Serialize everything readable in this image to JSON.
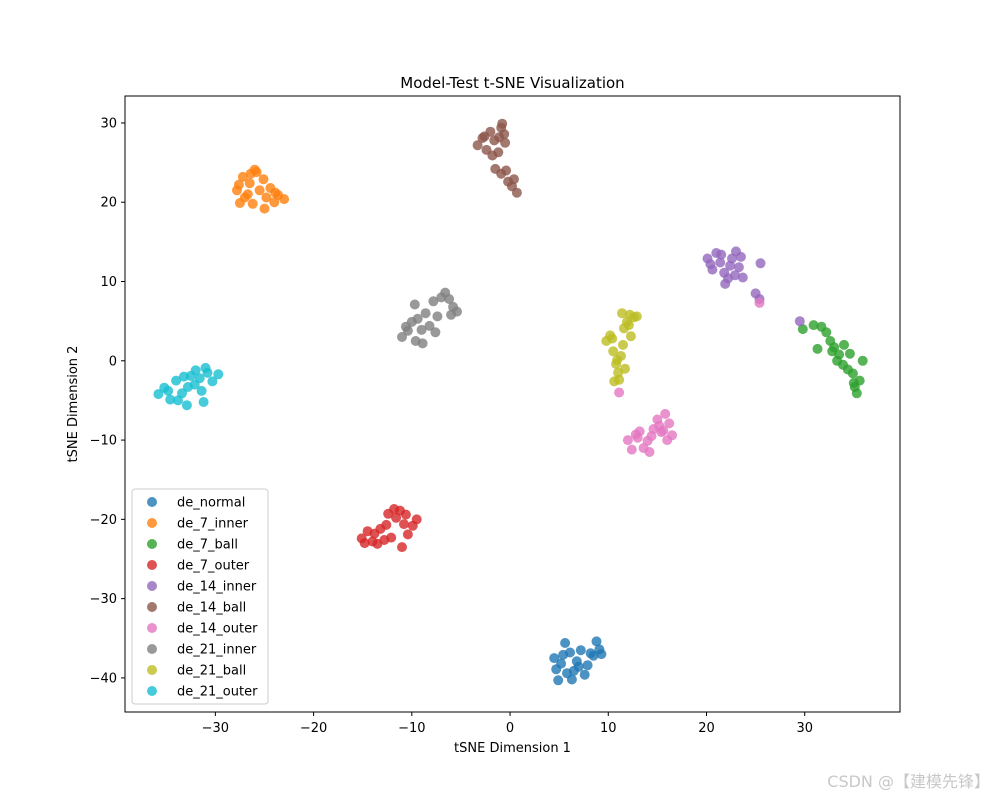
{
  "chart_data": {
    "type": "scatter",
    "title": "Model-Test t-SNE Visualization",
    "xlabel": "tSNE Dimension 1",
    "ylabel": "tSNE Dimension 2",
    "xlim": [
      -39.2,
      39.7
    ],
    "ylim": [
      -44.3,
      33.4
    ],
    "xticks": [
      -30,
      -20,
      -10,
      0,
      10,
      20,
      30
    ],
    "yticks": [
      -40,
      -30,
      -20,
      -10,
      0,
      10,
      20,
      30
    ],
    "grid": false,
    "legend_position": "lower-left",
    "series": [
      {
        "name": "de_normal",
        "color": "#1f77b4",
        "points": [
          [
            4.5,
            -37.5
          ],
          [
            5.2,
            -38.2
          ],
          [
            5.8,
            -39.4
          ],
          [
            4.9,
            -40.3
          ],
          [
            6.1,
            -36.8
          ],
          [
            6.8,
            -37.9
          ],
          [
            7.2,
            -36.5
          ],
          [
            7.9,
            -38.4
          ],
          [
            8.5,
            -37.2
          ],
          [
            9.1,
            -36.4
          ],
          [
            6.5,
            -39.1
          ],
          [
            5.6,
            -35.6
          ],
          [
            7.6,
            -39.6
          ],
          [
            8.8,
            -35.4
          ],
          [
            4.7,
            -38.9
          ],
          [
            6.3,
            -40.2
          ],
          [
            5.4,
            -37.1
          ],
          [
            7.0,
            -38.6
          ],
          [
            8.2,
            -36.9
          ],
          [
            9.3,
            -37.0
          ]
        ]
      },
      {
        "name": "de_7_inner",
        "color": "#ff7f0e",
        "points": [
          [
            -27.8,
            21.5
          ],
          [
            -27.2,
            23.2
          ],
          [
            -26.5,
            22.4
          ],
          [
            -25.8,
            23.8
          ],
          [
            -26.0,
            24.1
          ],
          [
            -25.1,
            22.9
          ],
          [
            -24.4,
            21.8
          ],
          [
            -23.6,
            20.9
          ],
          [
            -23.0,
            20.4
          ],
          [
            -24.0,
            20.0
          ],
          [
            -25.0,
            19.2
          ],
          [
            -26.2,
            19.8
          ],
          [
            -27.0,
            20.6
          ],
          [
            -27.5,
            19.9
          ],
          [
            -26.7,
            21.0
          ],
          [
            -24.8,
            20.6
          ],
          [
            -25.5,
            21.5
          ],
          [
            -23.9,
            21.2
          ],
          [
            -26.4,
            23.6
          ],
          [
            -27.6,
            22.2
          ]
        ]
      },
      {
        "name": "de_7_ball",
        "color": "#2ca02c",
        "points": [
          [
            29.8,
            4.0
          ],
          [
            30.9,
            4.5
          ],
          [
            31.7,
            4.3
          ],
          [
            31.3,
            1.5
          ],
          [
            32.2,
            3.6
          ],
          [
            32.6,
            2.5
          ],
          [
            33.0,
            1.7
          ],
          [
            33.5,
            0.8
          ],
          [
            33.9,
            -0.5
          ],
          [
            34.4,
            -1.1
          ],
          [
            34.9,
            -1.6
          ],
          [
            35.0,
            -2.8
          ],
          [
            35.3,
            -4.1
          ],
          [
            35.6,
            -2.5
          ],
          [
            35.9,
            0.0
          ],
          [
            34.0,
            2.0
          ],
          [
            33.3,
            0.0
          ],
          [
            32.8,
            1.2
          ],
          [
            34.6,
            0.9
          ],
          [
            35.1,
            -3.3
          ]
        ]
      },
      {
        "name": "de_7_outer",
        "color": "#d62728",
        "points": [
          [
            -15.1,
            -22.4
          ],
          [
            -14.5,
            -21.5
          ],
          [
            -14.0,
            -22.8
          ],
          [
            -13.5,
            -23.1
          ],
          [
            -13.2,
            -21.2
          ],
          [
            -12.6,
            -20.7
          ],
          [
            -12.1,
            -22.3
          ],
          [
            -11.6,
            -19.8
          ],
          [
            -11.2,
            -18.9
          ],
          [
            -10.8,
            -20.6
          ],
          [
            -10.4,
            -21.9
          ],
          [
            -9.9,
            -20.8
          ],
          [
            -9.5,
            -20.0
          ],
          [
            -11.0,
            -23.5
          ],
          [
            -12.4,
            -19.3
          ],
          [
            -13.8,
            -21.8
          ],
          [
            -12.8,
            -22.6
          ],
          [
            -11.8,
            -18.7
          ],
          [
            -10.6,
            -19.4
          ],
          [
            -14.8,
            -23.0
          ]
        ]
      },
      {
        "name": "de_14_inner",
        "color": "#9467bd",
        "points": [
          [
            20.1,
            12.9
          ],
          [
            20.6,
            11.5
          ],
          [
            21.0,
            13.6
          ],
          [
            21.4,
            12.4
          ],
          [
            21.8,
            11.1
          ],
          [
            22.2,
            10.4
          ],
          [
            22.6,
            12.9
          ],
          [
            23.0,
            13.8
          ],
          [
            23.3,
            11.8
          ],
          [
            23.7,
            10.5
          ],
          [
            22.9,
            10.8
          ],
          [
            21.5,
            13.4
          ],
          [
            20.4,
            12.2
          ],
          [
            23.5,
            13.1
          ],
          [
            25.0,
            8.5
          ],
          [
            25.5,
            12.3
          ],
          [
            25.4,
            7.8
          ],
          [
            29.5,
            5.0
          ],
          [
            21.9,
            9.7
          ],
          [
            22.4,
            12.0
          ]
        ]
      },
      {
        "name": "de_14_ball",
        "color": "#8c564b",
        "points": [
          [
            -3.3,
            27.2
          ],
          [
            -2.8,
            28.1
          ],
          [
            -2.4,
            26.6
          ],
          [
            -2.0,
            28.9
          ],
          [
            -1.6,
            27.8
          ],
          [
            -1.2,
            26.3
          ],
          [
            -0.9,
            29.4
          ],
          [
            -0.6,
            28.6
          ],
          [
            -0.5,
            27.5
          ],
          [
            -0.8,
            29.9
          ],
          [
            -1.8,
            25.9
          ],
          [
            -1.5,
            24.2
          ],
          [
            -0.9,
            23.6
          ],
          [
            -0.2,
            22.6
          ],
          [
            0.2,
            22.0
          ],
          [
            0.4,
            22.9
          ],
          [
            0.7,
            21.2
          ],
          [
            -0.4,
            24.0
          ],
          [
            -2.6,
            28.3
          ],
          [
            -1.1,
            28.2
          ]
        ]
      },
      {
        "name": "de_14_outer",
        "color": "#e377c2",
        "points": [
          [
            12.0,
            -10.0
          ],
          [
            12.4,
            -11.2
          ],
          [
            12.8,
            -9.3
          ],
          [
            13.2,
            -8.9
          ],
          [
            13.6,
            -11.0
          ],
          [
            14.0,
            -10.1
          ],
          [
            14.2,
            -11.5
          ],
          [
            14.6,
            -8.6
          ],
          [
            15.0,
            -7.4
          ],
          [
            15.4,
            -9.0
          ],
          [
            15.8,
            -6.7
          ],
          [
            16.2,
            -7.9
          ],
          [
            16.5,
            -9.4
          ],
          [
            15.2,
            -8.2
          ],
          [
            16.0,
            -10.0
          ],
          [
            13.0,
            -9.7
          ],
          [
            14.4,
            -9.5
          ],
          [
            11.1,
            -4.0
          ],
          [
            25.4,
            7.3
          ],
          [
            15.6,
            -8.8
          ]
        ]
      },
      {
        "name": "de_21_inner",
        "color": "#7f7f7f",
        "points": [
          [
            -11.0,
            3.0
          ],
          [
            -10.4,
            3.8
          ],
          [
            -10.0,
            4.9
          ],
          [
            -9.6,
            2.5
          ],
          [
            -9.4,
            5.3
          ],
          [
            -9.0,
            3.9
          ],
          [
            -8.6,
            6.0
          ],
          [
            -8.2,
            4.4
          ],
          [
            -7.8,
            7.5
          ],
          [
            -7.4,
            5.6
          ],
          [
            -7.0,
            8.0
          ],
          [
            -6.6,
            8.6
          ],
          [
            -6.2,
            7.8
          ],
          [
            -5.8,
            6.8
          ],
          [
            -5.4,
            6.2
          ],
          [
            -9.7,
            7.1
          ],
          [
            -10.6,
            4.3
          ],
          [
            -8.9,
            2.2
          ],
          [
            -7.6,
            3.6
          ],
          [
            -6.0,
            5.8
          ]
        ]
      },
      {
        "name": "de_21_ball",
        "color": "#bcbd22",
        "points": [
          [
            9.8,
            2.5
          ],
          [
            10.2,
            3.2
          ],
          [
            10.5,
            1.2
          ],
          [
            10.8,
            -0.4
          ],
          [
            11.0,
            -1.5
          ],
          [
            10.6,
            -2.6
          ],
          [
            11.1,
            -2.4
          ],
          [
            11.3,
            0.6
          ],
          [
            11.5,
            2.0
          ],
          [
            11.6,
            4.1
          ],
          [
            11.9,
            4.9
          ],
          [
            12.2,
            5.8
          ],
          [
            12.6,
            5.5
          ],
          [
            12.9,
            5.6
          ],
          [
            12.3,
            3.1
          ],
          [
            11.4,
            6.0
          ],
          [
            10.9,
            0.1
          ],
          [
            11.7,
            -1.0
          ],
          [
            10.4,
            2.8
          ],
          [
            12.1,
            4.5
          ]
        ]
      },
      {
        "name": "de_21_outer",
        "color": "#17becf",
        "points": [
          [
            -35.8,
            -4.2
          ],
          [
            -35.2,
            -3.4
          ],
          [
            -34.6,
            -4.9
          ],
          [
            -34.0,
            -2.5
          ],
          [
            -33.4,
            -4.1
          ],
          [
            -32.9,
            -5.6
          ],
          [
            -32.5,
            -1.9
          ],
          [
            -32.1,
            -3.0
          ],
          [
            -31.6,
            -2.2
          ],
          [
            -31.2,
            -5.2
          ],
          [
            -30.8,
            -1.5
          ],
          [
            -30.3,
            -2.6
          ],
          [
            -29.7,
            -1.7
          ],
          [
            -32.8,
            -3.3
          ],
          [
            -33.8,
            -5.0
          ],
          [
            -31.0,
            -0.9
          ],
          [
            -34.8,
            -3.8
          ],
          [
            -32.0,
            -1.2
          ],
          [
            -33.2,
            -2.0
          ],
          [
            -31.4,
            -3.8
          ]
        ]
      }
    ]
  },
  "watermark": "CSDN @【建模先锋】"
}
